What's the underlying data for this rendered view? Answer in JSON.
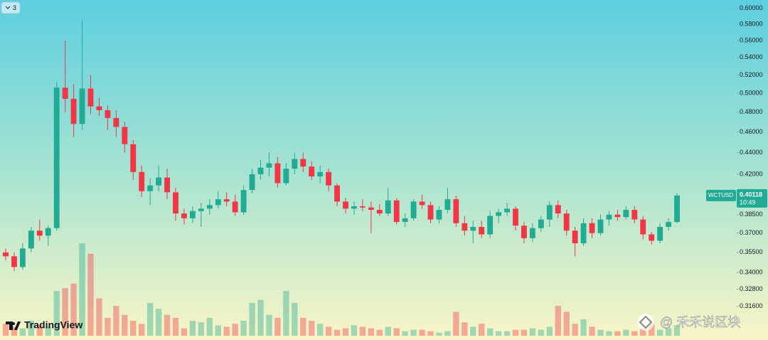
{
  "chart_data": {
    "type": "candlestick",
    "symbol": "WCTUSD",
    "countdown": "10:49",
    "indicator_count": "3",
    "brand": "TradingView",
    "watermark": "@ 禾禾说区块",
    "log_scale": true,
    "ylim": [
      0.294,
      0.611
    ],
    "yticks": [
      {
        "value": 0.6,
        "label": "0.60000"
      },
      {
        "value": 0.58,
        "label": "0.58000"
      },
      {
        "value": 0.56,
        "label": "0.56000"
      },
      {
        "value": 0.54,
        "label": "0.54000"
      },
      {
        "value": 0.52,
        "label": "0.52000"
      },
      {
        "value": 0.5,
        "label": "0.50000"
      },
      {
        "value": 0.48,
        "label": "0.48000"
      },
      {
        "value": 0.46,
        "label": "0.46000"
      },
      {
        "value": 0.44,
        "label": "0.44000"
      },
      {
        "value": 0.42,
        "label": "0.42000"
      },
      {
        "value": 0.385,
        "label": "0.38500"
      },
      {
        "value": 0.37,
        "label": "0.37000"
      },
      {
        "value": 0.355,
        "label": "0.35500"
      },
      {
        "value": 0.34,
        "label": "0.34000"
      },
      {
        "value": 0.328,
        "label": "0.32800"
      },
      {
        "value": 0.316,
        "label": "0.31600"
      }
    ],
    "up_color": "#22ab94",
    "down_color": "#f23645",
    "open": [
      0.355,
      0.352,
      0.344,
      0.358,
      0.372,
      0.368,
      0.374,
      0.506,
      0.494,
      0.468,
      0.505,
      0.486,
      0.482,
      0.474,
      0.465,
      0.448,
      0.422,
      0.405,
      0.41,
      0.417,
      0.404,
      0.386,
      0.382,
      0.388,
      0.39,
      0.393,
      0.398,
      0.396,
      0.387,
      0.406,
      0.42,
      0.426,
      0.43,
      0.412,
      0.425,
      0.434,
      0.427,
      0.418,
      0.422,
      0.41,
      0.396,
      0.39,
      0.392,
      0.391,
      0.389,
      0.386,
      0.397,
      0.379,
      0.382,
      0.396,
      0.393,
      0.381,
      0.389,
      0.398,
      0.378,
      0.372,
      0.375,
      0.369,
      0.384,
      0.387,
      0.39,
      0.376,
      0.366,
      0.374,
      0.381,
      0.393,
      0.386,
      0.372,
      0.362,
      0.378,
      0.37,
      0.381,
      0.385,
      0.383,
      0.389,
      0.381,
      0.369,
      0.364,
      0.375,
      0.379
    ],
    "high": [
      0.358,
      0.355,
      0.362,
      0.375,
      0.381,
      0.376,
      0.512,
      0.56,
      0.51,
      0.585,
      0.52,
      0.495,
      0.487,
      0.482,
      0.47,
      0.452,
      0.428,
      0.416,
      0.428,
      0.425,
      0.408,
      0.39,
      0.392,
      0.395,
      0.398,
      0.405,
      0.404,
      0.402,
      0.41,
      0.425,
      0.433,
      0.44,
      0.436,
      0.43,
      0.44,
      0.44,
      0.432,
      0.428,
      0.425,
      0.412,
      0.399,
      0.396,
      0.398,
      0.396,
      0.394,
      0.408,
      0.399,
      0.386,
      0.398,
      0.402,
      0.396,
      0.392,
      0.408,
      0.401,
      0.384,
      0.38,
      0.38,
      0.388,
      0.39,
      0.395,
      0.392,
      0.379,
      0.378,
      0.384,
      0.396,
      0.397,
      0.389,
      0.375,
      0.382,
      0.382,
      0.385,
      0.388,
      0.389,
      0.392,
      0.392,
      0.384,
      0.371,
      0.378,
      0.382,
      0.403
    ],
    "low": [
      0.349,
      0.341,
      0.342,
      0.355,
      0.364,
      0.36,
      0.372,
      0.48,
      0.455,
      0.462,
      0.478,
      0.476,
      0.462,
      0.455,
      0.44,
      0.415,
      0.4,
      0.393,
      0.405,
      0.398,
      0.38,
      0.377,
      0.378,
      0.375,
      0.385,
      0.39,
      0.392,
      0.384,
      0.385,
      0.403,
      0.415,
      0.418,
      0.408,
      0.41,
      0.42,
      0.422,
      0.415,
      0.412,
      0.405,
      0.392,
      0.386,
      0.385,
      0.388,
      0.37,
      0.384,
      0.384,
      0.377,
      0.375,
      0.38,
      0.39,
      0.378,
      0.378,
      0.386,
      0.375,
      0.368,
      0.362,
      0.366,
      0.366,
      0.378,
      0.384,
      0.372,
      0.362,
      0.363,
      0.371,
      0.375,
      0.382,
      0.368,
      0.352,
      0.36,
      0.366,
      0.368,
      0.376,
      0.38,
      0.381,
      0.378,
      0.365,
      0.361,
      0.362,
      0.372,
      0.378
    ],
    "close": [
      0.352,
      0.344,
      0.358,
      0.372,
      0.368,
      0.374,
      0.506,
      0.494,
      0.468,
      0.505,
      0.486,
      0.482,
      0.474,
      0.465,
      0.448,
      0.422,
      0.405,
      0.41,
      0.417,
      0.404,
      0.386,
      0.382,
      0.388,
      0.39,
      0.393,
      0.398,
      0.396,
      0.387,
      0.406,
      0.42,
      0.426,
      0.43,
      0.412,
      0.425,
      0.434,
      0.427,
      0.418,
      0.422,
      0.41,
      0.396,
      0.39,
      0.392,
      0.391,
      0.389,
      0.386,
      0.397,
      0.379,
      0.382,
      0.396,
      0.393,
      0.381,
      0.389,
      0.398,
      0.378,
      0.372,
      0.375,
      0.369,
      0.384,
      0.387,
      0.39,
      0.376,
      0.366,
      0.374,
      0.381,
      0.393,
      0.386,
      0.372,
      0.362,
      0.378,
      0.37,
      0.381,
      0.385,
      0.383,
      0.389,
      0.381,
      0.369,
      0.364,
      0.375,
      0.379,
      0.40118
    ],
    "volume": [
      8,
      6,
      5,
      10,
      7,
      6,
      30,
      32,
      35,
      62,
      55,
      25,
      12,
      20,
      14,
      10,
      8,
      22,
      18,
      14,
      12,
      5,
      10,
      9,
      12,
      7,
      6,
      8,
      10,
      22,
      24,
      14,
      12,
      30,
      22,
      12,
      10,
      8,
      6,
      4,
      5,
      7,
      6,
      5,
      4,
      6,
      5,
      3,
      4,
      4,
      3,
      2,
      3,
      16,
      9,
      6,
      8,
      5,
      3,
      3,
      4,
      4,
      5,
      4,
      6,
      20,
      16,
      8,
      11,
      6,
      4,
      3,
      3,
      4,
      3,
      5,
      8,
      4,
      5,
      7
    ]
  }
}
